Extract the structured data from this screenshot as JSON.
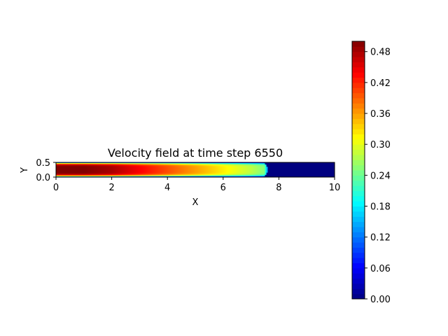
{
  "chart_data": {
    "type": "heatmap",
    "title": "Velocity field at time step 6550",
    "xlabel": "X",
    "ylabel": "Y",
    "xlim": [
      0,
      10
    ],
    "ylim": [
      0,
      0.5
    ],
    "x_ticks": [
      "0",
      "2",
      "4",
      "6",
      "8",
      "10"
    ],
    "y_ticks": [
      "0.0",
      "0.5"
    ],
    "colormap": "jet",
    "value_range": [
      0,
      0.5
    ],
    "colorbar_ticks": [
      "0.00",
      "0.06",
      "0.12",
      "0.18",
      "0.24",
      "0.30",
      "0.36",
      "0.42",
      "0.48"
    ],
    "field": {
      "description_values": {
        "inlet_max": 0.5,
        "front_position_x": 7.6,
        "front_value": 0.18,
        "centerline": [
          {
            "x": 0,
            "v": 0.5
          },
          {
            "x": 1,
            "v": 0.5
          },
          {
            "x": 2,
            "v": 0.48
          },
          {
            "x": 3,
            "v": 0.44
          },
          {
            "x": 4,
            "v": 0.4
          },
          {
            "x": 5,
            "v": 0.36
          },
          {
            "x": 6,
            "v": 0.32
          },
          {
            "x": 7,
            "v": 0.28
          },
          {
            "x": 7.5,
            "v": 0.25
          }
        ],
        "downstream_value": 0.0
      }
    }
  }
}
